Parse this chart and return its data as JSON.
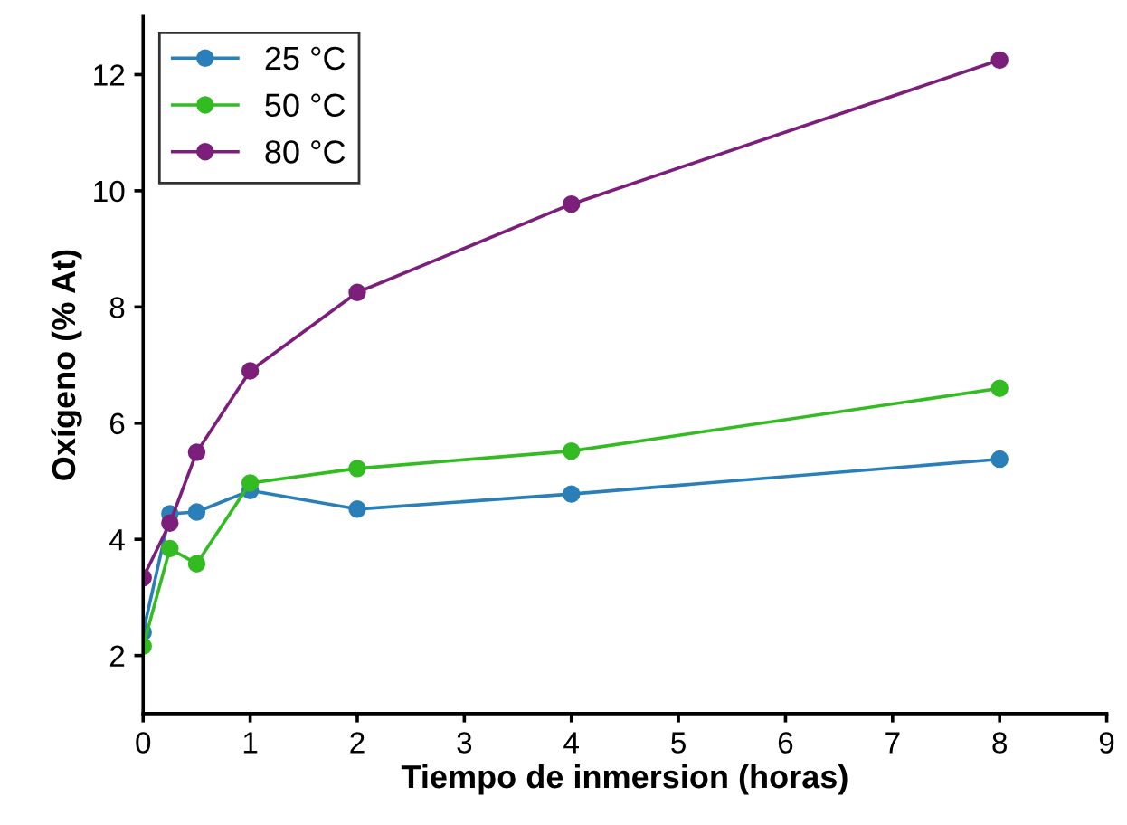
{
  "chart_data": {
    "type": "line",
    "xlabel": "Tiempo de inmersion (horas)",
    "ylabel": "Oxígeno (% At)",
    "x": [
      0,
      0.25,
      0.5,
      1,
      2,
      4,
      8
    ],
    "series": [
      {
        "name": "25 °C",
        "color": "#2a7fb8",
        "values": [
          2.4,
          4.44,
          4.47,
          4.84,
          4.52,
          4.78,
          5.38
        ]
      },
      {
        "name": "50 °C",
        "color": "#33bb22",
        "values": [
          2.16,
          3.84,
          3.58,
          4.97,
          5.22,
          5.52,
          6.6
        ]
      },
      {
        "name": "80 °C",
        "color": "#7b1f7b",
        "values": [
          3.34,
          4.28,
          5.5,
          6.9,
          8.25,
          9.77,
          12.25
        ]
      }
    ],
    "xlim": [
      0,
      9
    ],
    "xticks": [
      0,
      1,
      2,
      3,
      4,
      5,
      6,
      7,
      8,
      9
    ],
    "ylim": [
      1,
      13
    ],
    "yticks": [
      2,
      4,
      6,
      8,
      10,
      12
    ],
    "grid": false,
    "legend": "top left",
    "marker": "circle",
    "line_style": "solid"
  }
}
